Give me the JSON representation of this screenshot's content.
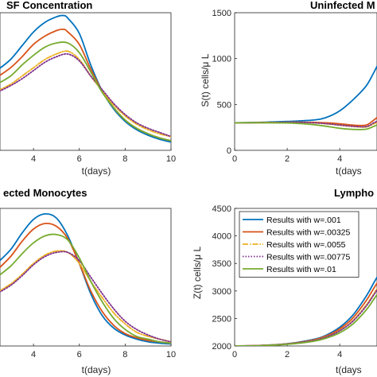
{
  "chart_data": [
    {
      "type": "line",
      "title": "SF Concentration",
      "xlabel": "t(days)",
      "ylabel": "",
      "xlim": [
        2.4,
        10
      ],
      "ylim": [
        0,
        1
      ],
      "xticks": [
        "4",
        "6",
        "8",
        "10"
      ],
      "yticks": [],
      "series": [
        {
          "name": "Results with w=.001",
          "style": "solid",
          "color": "#0072BD",
          "x": [
            2.4,
            3,
            3.5,
            4,
            4.5,
            5,
            5.3,
            5.5,
            6,
            6.5,
            7,
            7.5,
            8,
            8.5,
            9,
            9.5,
            10
          ],
          "y": [
            0.58,
            0.66,
            0.76,
            0.86,
            0.93,
            0.97,
            0.98,
            0.96,
            0.85,
            0.62,
            0.43,
            0.3,
            0.21,
            0.15,
            0.11,
            0.08,
            0.06
          ]
        },
        {
          "name": "Results with w=.00325",
          "style": "solid",
          "color": "#D95319",
          "x": [
            2.4,
            3,
            3.5,
            4,
            4.5,
            5,
            5.3,
            5.5,
            6,
            6.5,
            7,
            7.5,
            8,
            8.5,
            9,
            9.5,
            10
          ],
          "y": [
            0.53,
            0.6,
            0.68,
            0.77,
            0.83,
            0.87,
            0.88,
            0.86,
            0.77,
            0.59,
            0.43,
            0.31,
            0.22,
            0.16,
            0.12,
            0.09,
            0.07
          ]
        },
        {
          "name": "Results with w=.0055",
          "style": "dashdot",
          "color": "#EDB120",
          "x": [
            2.4,
            3,
            3.5,
            4,
            4.5,
            5,
            5.5,
            6,
            6.5,
            7,
            7.5,
            8,
            8.5,
            9,
            9.5,
            10
          ],
          "y": [
            0.43,
            0.48,
            0.54,
            0.6,
            0.66,
            0.7,
            0.72,
            0.66,
            0.54,
            0.43,
            0.33,
            0.25,
            0.19,
            0.15,
            0.12,
            0.1
          ]
        },
        {
          "name": "Results with w=.00775",
          "style": "dotted",
          "color": "#7E2F8E",
          "x": [
            2.4,
            3,
            3.5,
            4,
            4.5,
            5,
            5.5,
            6,
            6.5,
            7,
            7.5,
            8,
            8.5,
            9,
            9.5,
            10
          ],
          "y": [
            0.42,
            0.47,
            0.52,
            0.58,
            0.64,
            0.68,
            0.7,
            0.65,
            0.54,
            0.44,
            0.34,
            0.26,
            0.2,
            0.16,
            0.13,
            0.1
          ]
        },
        {
          "name": "Results with w=.01",
          "style": "solid",
          "color": "#77AC30",
          "x": [
            2.4,
            3,
            3.5,
            4,
            4.5,
            5,
            5.5,
            6,
            6.5,
            7,
            7.5,
            8,
            8.5,
            9,
            9.5,
            10
          ],
          "y": [
            0.48,
            0.54,
            0.62,
            0.69,
            0.75,
            0.78,
            0.78,
            0.71,
            0.57,
            0.42,
            0.31,
            0.22,
            0.16,
            0.12,
            0.09,
            0.07
          ]
        }
      ]
    },
    {
      "type": "line",
      "title": "Uninfected M",
      "xlabel": "t(days",
      "ylabel": "S(t) cells/μ L",
      "xlim": [
        0,
        5.6
      ],
      "ylim": [
        0,
        1500
      ],
      "xticks": [
        "0",
        "2",
        "4"
      ],
      "yticks": [
        "0",
        "500",
        "1000",
        "1500"
      ],
      "series": [
        {
          "name": "Results with w=.001",
          "style": "solid",
          "color": "#0072BD",
          "x": [
            0,
            1,
            2,
            3,
            3.5,
            4,
            4.5,
            5,
            5.3,
            5.6
          ],
          "y": [
            300,
            305,
            315,
            330,
            360,
            430,
            550,
            700,
            850,
            1020
          ]
        },
        {
          "name": "Results with w=.00325",
          "style": "solid",
          "color": "#D95319",
          "x": [
            0,
            1,
            2,
            2.5,
            3,
            3.5,
            4,
            4.5,
            5,
            5.3,
            5.6
          ],
          "y": [
            300,
            302,
            305,
            307,
            305,
            300,
            290,
            275,
            275,
            330,
            400
          ]
        },
        {
          "name": "Results with w=.0055",
          "style": "dashdot",
          "color": "#EDB120",
          "x": [
            0,
            1,
            2,
            2.5,
            3,
            3.5,
            4,
            4.5,
            5,
            5.3,
            5.6
          ],
          "y": [
            300,
            302,
            305,
            305,
            300,
            290,
            275,
            260,
            255,
            290,
            330
          ]
        },
        {
          "name": "Results with w=.00775",
          "style": "dotted",
          "color": "#7E2F8E",
          "x": [
            0,
            1,
            2,
            2.5,
            3,
            3.5,
            4,
            4.5,
            5,
            5.3,
            5.6
          ],
          "y": [
            300,
            302,
            305,
            305,
            300,
            290,
            275,
            262,
            258,
            300,
            340
          ]
        },
        {
          "name": "Results with w=.01",
          "style": "solid",
          "color": "#77AC30",
          "x": [
            0,
            1,
            2,
            2.5,
            3,
            3.5,
            4,
            4.5,
            5,
            5.3,
            5.6
          ],
          "y": [
            300,
            300,
            298,
            292,
            280,
            262,
            240,
            228,
            230,
            262,
            300
          ]
        }
      ]
    },
    {
      "type": "line",
      "title": "ected Monocytes",
      "xlabel": "t(days)",
      "ylabel": "",
      "xlim": [
        2.4,
        10
      ],
      "ylim": [
        0,
        1
      ],
      "xticks": [
        "4",
        "6",
        "8",
        "10"
      ],
      "yticks": [],
      "series": [
        {
          "name": "Results with w=.001",
          "style": "solid",
          "color": "#0072BD",
          "x": [
            2.4,
            3,
            3.5,
            4,
            4.5,
            5,
            5.5,
            6,
            6.5,
            7,
            7.5,
            8,
            8.5,
            9,
            9.5,
            10
          ],
          "y": [
            0.6,
            0.7,
            0.82,
            0.92,
            0.96,
            0.93,
            0.8,
            0.6,
            0.38,
            0.22,
            0.13,
            0.08,
            0.05,
            0.03,
            0.02,
            0.015
          ]
        },
        {
          "name": "Results with w=.00325",
          "style": "solid",
          "color": "#D95319",
          "x": [
            2.4,
            3,
            3.5,
            4,
            4.5,
            5,
            5.5,
            6,
            6.5,
            7,
            7.5,
            8,
            8.5,
            9,
            9.5,
            10
          ],
          "y": [
            0.55,
            0.65,
            0.76,
            0.85,
            0.89,
            0.87,
            0.78,
            0.6,
            0.4,
            0.25,
            0.15,
            0.09,
            0.06,
            0.04,
            0.03,
            0.02
          ]
        },
        {
          "name": "Results with w=.0055",
          "style": "dashdot",
          "color": "#EDB120",
          "x": [
            2.4,
            3,
            3.5,
            4,
            4.5,
            5,
            5.5,
            6,
            6.5,
            7,
            7.5,
            8,
            8.5,
            9,
            9.5,
            10
          ],
          "y": [
            0.39,
            0.45,
            0.52,
            0.6,
            0.66,
            0.69,
            0.68,
            0.6,
            0.47,
            0.35,
            0.24,
            0.16,
            0.1,
            0.07,
            0.05,
            0.03
          ]
        },
        {
          "name": "Results with w=.00775",
          "style": "dotted",
          "color": "#7E2F8E",
          "x": [
            2.4,
            3,
            3.5,
            4,
            4.5,
            5,
            5.5,
            6,
            6.5,
            7,
            7.5,
            8,
            8.5,
            9,
            9.5,
            10
          ],
          "y": [
            0.38,
            0.44,
            0.51,
            0.59,
            0.65,
            0.68,
            0.68,
            0.62,
            0.5,
            0.38,
            0.27,
            0.18,
            0.12,
            0.08,
            0.05,
            0.03
          ]
        },
        {
          "name": "Results with w=.01",
          "style": "solid",
          "color": "#77AC30",
          "x": [
            2.4,
            3,
            3.5,
            4,
            4.5,
            5,
            5.5,
            6,
            6.5,
            7,
            7.5,
            8,
            8.5,
            9,
            9.5,
            10
          ],
          "y": [
            0.5,
            0.58,
            0.67,
            0.75,
            0.8,
            0.81,
            0.77,
            0.64,
            0.47,
            0.32,
            0.2,
            0.12,
            0.07,
            0.05,
            0.03,
            0.02
          ]
        }
      ]
    },
    {
      "type": "line",
      "title": "Lympho",
      "xlabel": "t(days",
      "ylabel": "Z(t) cells/μ L",
      "xlim": [
        0,
        5.6
      ],
      "ylim": [
        2000,
        4500
      ],
      "xticks": [
        "0",
        "2",
        "4"
      ],
      "yticks": [
        "2000",
        "2500",
        "3000",
        "3500",
        "4000",
        "4500"
      ],
      "legend": "top-left",
      "series": [
        {
          "name": "Results with w=.001",
          "style": "solid",
          "color": "#0072BD",
          "x": [
            0,
            1,
            2,
            3,
            3.5,
            4,
            4.5,
            5,
            5.3,
            5.6
          ],
          "y": [
            2000,
            2010,
            2040,
            2120,
            2200,
            2340,
            2560,
            2900,
            3150,
            3400
          ]
        },
        {
          "name": "Results with w=.00325",
          "style": "solid",
          "color": "#D95319",
          "x": [
            0,
            1,
            2,
            3,
            3.5,
            4,
            4.5,
            5,
            5.3,
            5.6
          ],
          "y": [
            2000,
            2010,
            2038,
            2110,
            2185,
            2310,
            2510,
            2820,
            3050,
            3280
          ]
        },
        {
          "name": "Results with w=.0055",
          "style": "dashdot",
          "color": "#EDB120",
          "x": [
            0,
            1,
            2,
            3,
            3.5,
            4,
            4.5,
            5,
            5.3,
            5.6
          ],
          "y": [
            2000,
            2008,
            2035,
            2100,
            2170,
            2280,
            2460,
            2740,
            2950,
            3170
          ]
        },
        {
          "name": "Results with w=.00775",
          "style": "dotted",
          "color": "#7E2F8E",
          "x": [
            0,
            1,
            2,
            3,
            3.5,
            4,
            4.5,
            5,
            5.3,
            5.6
          ],
          "y": [
            2000,
            2008,
            2035,
            2098,
            2165,
            2275,
            2450,
            2720,
            2930,
            3150
          ]
        },
        {
          "name": "Results with w=.01",
          "style": "solid",
          "color": "#77AC30",
          "x": [
            0,
            1,
            2,
            3,
            3.5,
            4,
            4.5,
            5,
            5.3,
            5.6
          ],
          "y": [
            2000,
            2006,
            2030,
            2085,
            2145,
            2240,
            2400,
            2650,
            2850,
            3060
          ]
        }
      ]
    }
  ]
}
